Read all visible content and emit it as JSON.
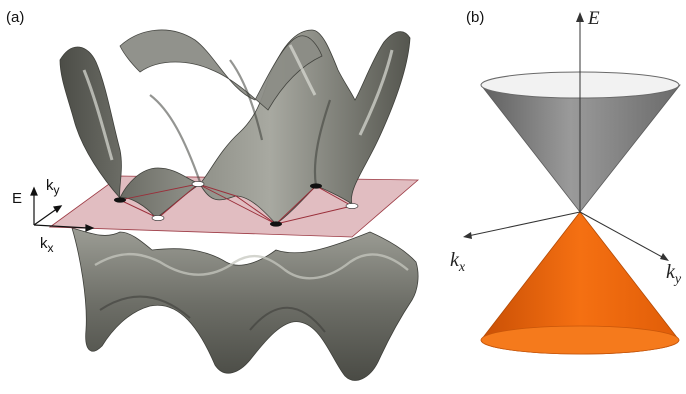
{
  "panels": [
    {
      "label": "(a)",
      "axes": {
        "E": "E",
        "ky_main": "k",
        "ky_sub": "y",
        "kx_main": "k",
        "kx_sub": "x"
      }
    },
    {
      "label": "(b)",
      "axes": {
        "E": "E",
        "kx_main": "k",
        "kx_sub": "x",
        "ky_main": "k",
        "ky_sub": "y"
      }
    }
  ],
  "colors": {
    "surface": "#7a7b73",
    "surface_dark": "#4c4d47",
    "surface_light": "#b9bab2",
    "plane": "#c9868e",
    "plane_edge": "#9d3b45",
    "upper_cone": "#8e8e8e",
    "lower_cone": "#f26b0e",
    "dirac_point_dark": "#111111",
    "dirac_point_light": "#ffffff"
  }
}
